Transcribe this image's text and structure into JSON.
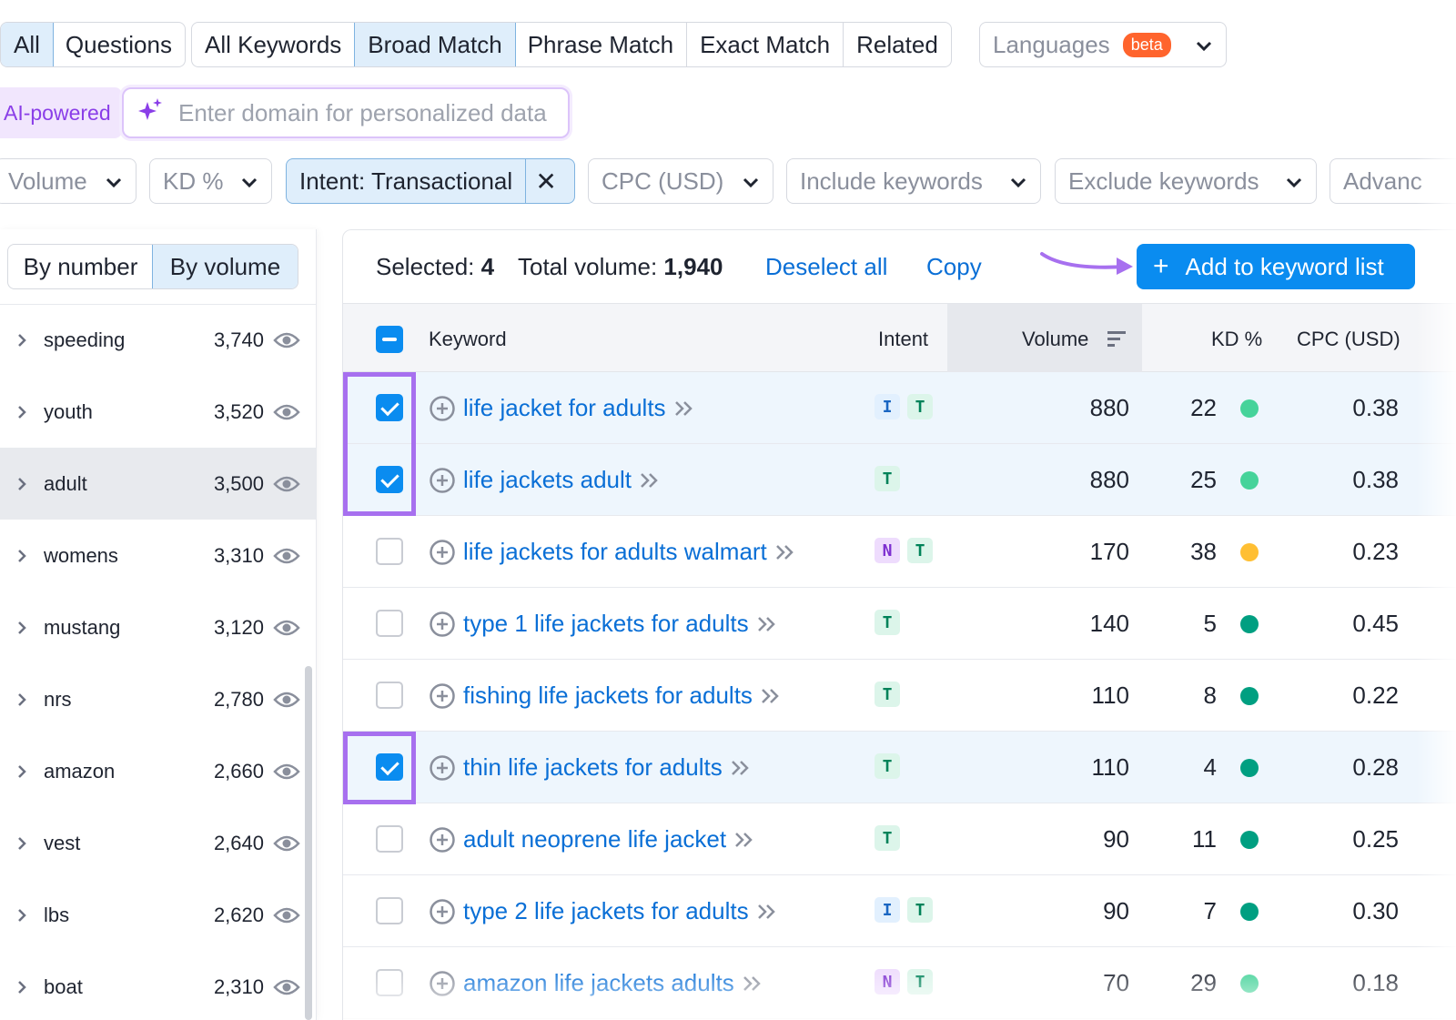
{
  "tabs_group1": [
    "All",
    "Questions"
  ],
  "tabs_group2": [
    "All Keywords",
    "Broad Match",
    "Phrase Match",
    "Exact Match",
    "Related"
  ],
  "languages": {
    "label": "Languages",
    "badge": "beta"
  },
  "ai": {
    "label": "AI-powered",
    "placeholder": "Enter domain for personalized data"
  },
  "filters": {
    "volume": "Volume",
    "kd": "KD %",
    "intent": "Intent: Transactional",
    "cpc": "CPC (USD)",
    "include": "Include keywords",
    "exclude": "Exclude keywords",
    "advanced": "Advanc"
  },
  "toggle": {
    "by_number": "By number",
    "by_volume": "By volume"
  },
  "groups": [
    {
      "name": "speeding",
      "count": "3,740"
    },
    {
      "name": "youth",
      "count": "3,520"
    },
    {
      "name": "adult",
      "count": "3,500",
      "selected": true
    },
    {
      "name": "womens",
      "count": "3,310"
    },
    {
      "name": "mustang",
      "count": "3,120"
    },
    {
      "name": "nrs",
      "count": "2,780"
    },
    {
      "name": "amazon",
      "count": "2,660"
    },
    {
      "name": "vest",
      "count": "2,640"
    },
    {
      "name": "lbs",
      "count": "2,620"
    },
    {
      "name": "boat",
      "count": "2,310"
    }
  ],
  "selection": {
    "selected_label": "Selected:",
    "selected_count": "4",
    "total_label": "Total volume:",
    "total_value": "1,940",
    "deselect": "Deselect all",
    "copy": "Copy",
    "add_button": "Add to keyword list"
  },
  "columns": {
    "keyword": "Keyword",
    "intent": "Intent",
    "volume": "Volume",
    "kd": "KD %",
    "cpc": "CPC (USD)"
  },
  "colors": {
    "kd_easy": "#46d39a",
    "kd_medium": "#ffbf33",
    "kd_very_easy": "#009f81",
    "accent": "#0a8cf0",
    "highlight": "#a770ef"
  },
  "rows": [
    {
      "keyword": "life jacket for adults",
      "intents": [
        "I",
        "T"
      ],
      "volume": "880",
      "kd": "22",
      "kd_color": "#46d39a",
      "cpc": "0.38",
      "checked": true
    },
    {
      "keyword": "life jackets adult",
      "intents": [
        "T"
      ],
      "volume": "880",
      "kd": "25",
      "kd_color": "#46d39a",
      "cpc": "0.38",
      "checked": true
    },
    {
      "keyword": "life jackets for adults walmart",
      "intents": [
        "N",
        "T"
      ],
      "volume": "170",
      "kd": "38",
      "kd_color": "#ffbf33",
      "cpc": "0.23",
      "checked": false
    },
    {
      "keyword": "type 1 life jackets for adults",
      "intents": [
        "T"
      ],
      "volume": "140",
      "kd": "5",
      "kd_color": "#009f81",
      "cpc": "0.45",
      "checked": false
    },
    {
      "keyword": "fishing life jackets for adults",
      "intents": [
        "T"
      ],
      "volume": "110",
      "kd": "8",
      "kd_color": "#009f81",
      "cpc": "0.22",
      "checked": false
    },
    {
      "keyword": "thin life jackets for adults",
      "intents": [
        "T"
      ],
      "volume": "110",
      "kd": "4",
      "kd_color": "#009f81",
      "cpc": "0.28",
      "checked": true
    },
    {
      "keyword": "adult neoprene life jacket",
      "intents": [
        "T"
      ],
      "volume": "90",
      "kd": "11",
      "kd_color": "#009f81",
      "cpc": "0.25",
      "checked": false
    },
    {
      "keyword": "type 2 life jackets for adults",
      "intents": [
        "I",
        "T"
      ],
      "volume": "90",
      "kd": "7",
      "kd_color": "#009f81",
      "cpc": "0.30",
      "checked": false
    },
    {
      "keyword": "amazon life jackets adults",
      "intents": [
        "N",
        "T"
      ],
      "volume": "70",
      "kd": "29",
      "kd_color": "#46d39a",
      "cpc": "0.18",
      "checked": false
    }
  ]
}
